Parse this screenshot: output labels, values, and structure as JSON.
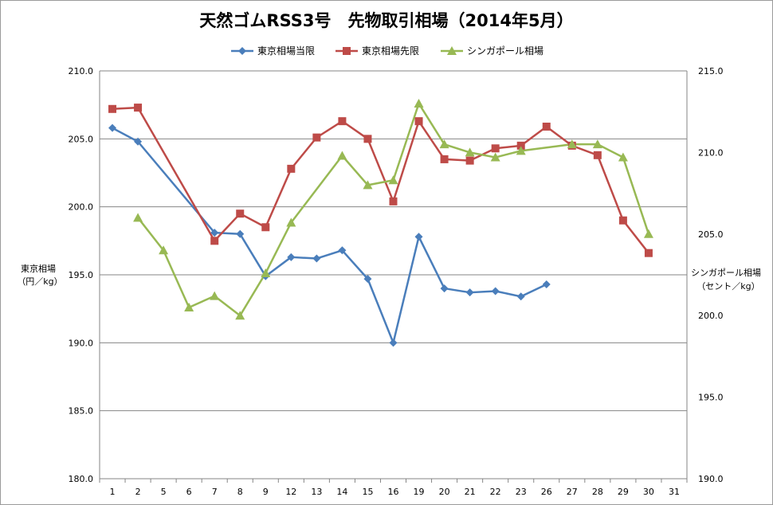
{
  "chart_data": {
    "type": "line",
    "title": "天然ゴムRSS3号　先物取引相場（2014年5月）",
    "categories": [
      "1",
      "2",
      "5",
      "6",
      "7",
      "8",
      "9",
      "12",
      "13",
      "14",
      "15",
      "16",
      "19",
      "20",
      "21",
      "22",
      "23",
      "26",
      "27",
      "28",
      "29",
      "30",
      "31"
    ],
    "ylabel_left": [
      "東京相場",
      "（円／kg）"
    ],
    "ylabel_right": [
      "シンガポール相場",
      "（セント／kg）"
    ],
    "ylim_left": [
      180,
      210
    ],
    "ylim_right": [
      190,
      215
    ],
    "yticks_left": [
      "210.0",
      "205.0",
      "200.0",
      "195.0",
      "190.0",
      "185.0",
      "180.0"
    ],
    "yticks_right": [
      "215.0",
      "210.0",
      "205.0",
      "200.0",
      "195.0",
      "190.0"
    ],
    "grid": true,
    "legend_position": "top",
    "series": [
      {
        "name": "東京相場当限",
        "axis": "left",
        "color": "#4a7ebb",
        "marker": "diamond",
        "values": [
          205.8,
          204.8,
          null,
          null,
          198.1,
          198.0,
          194.9,
          196.3,
          196.2,
          196.8,
          194.7,
          190.0,
          197.8,
          194.0,
          193.7,
          193.8,
          193.4,
          194.3,
          null,
          null,
          null,
          null,
          null
        ]
      },
      {
        "name": "東京相場先限",
        "axis": "left",
        "color": "#be4b48",
        "marker": "square",
        "values": [
          207.2,
          207.3,
          null,
          null,
          197.5,
          199.5,
          198.5,
          202.8,
          205.1,
          206.3,
          205.0,
          200.4,
          206.3,
          203.5,
          203.4,
          204.3,
          204.5,
          205.9,
          204.5,
          203.8,
          199.0,
          196.6,
          null
        ]
      },
      {
        "name": "シンガポール相場",
        "axis": "right",
        "color": "#98b954",
        "marker": "triangle",
        "values": [
          null,
          206.0,
          204.0,
          200.5,
          201.2,
          200.0,
          202.6,
          205.7,
          null,
          209.8,
          208.0,
          208.3,
          213.0,
          210.5,
          210.0,
          209.7,
          210.1,
          null,
          210.5,
          210.5,
          209.7,
          205.0,
          null
        ]
      }
    ]
  }
}
